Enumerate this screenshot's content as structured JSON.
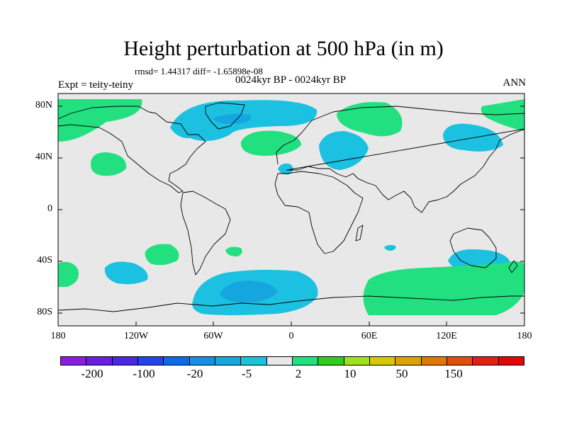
{
  "title": "Height perturbation at 500 hPa (in m)",
  "stats": "rmsd= 1.44317 diff= -1.65898e-08",
  "subtitle": "0024kyr BP - 0024kyr BP",
  "experiment": "Expt = teity-teiny",
  "season": "ANN",
  "lat_labels": [
    "80N",
    "40N",
    "0",
    "40S",
    "80S"
  ],
  "lon_labels": [
    "180",
    "120W",
    "60W",
    "0",
    "60E",
    "120E",
    "180"
  ],
  "colors": {
    "background": "#e8e8e8",
    "light_cyan": "#1cc0e0",
    "mid_blue": "#15a6e0",
    "light_green": "#22e080",
    "coast": "#000000"
  },
  "colorbar": {
    "colors": [
      "#8a1ee0",
      "#6a1ee0",
      "#4a28e0",
      "#2244e8",
      "#0c6ce8",
      "#1590e8",
      "#15a8e0",
      "#1ac2e0",
      "#e8e8e8",
      "#22e080",
      "#30cc20",
      "#a0e020",
      "#d8c80a",
      "#e0a008",
      "#e07808",
      "#e05008",
      "#e02010",
      "#e00808"
    ],
    "labels": [
      "-200",
      "-100",
      "-20",
      "-5",
      "2",
      "10",
      "50",
      "150"
    ]
  },
  "anomaly_regions": [
    {
      "name": "north-atlantic-negative",
      "sign": "negative"
    },
    {
      "name": "arctic-atlantic-positive",
      "sign": "positive"
    },
    {
      "name": "europe-negative",
      "sign": "negative"
    },
    {
      "name": "siberia-positive",
      "sign": "positive"
    },
    {
      "name": "east-asia-negative",
      "sign": "negative"
    },
    {
      "name": "alaska-positive",
      "sign": "positive"
    },
    {
      "name": "north-pacific-positive",
      "sign": "positive"
    },
    {
      "name": "australia-negative",
      "sign": "negative"
    },
    {
      "name": "southern-ocean-positive",
      "sign": "positive"
    },
    {
      "name": "south-atlantic-negative",
      "sign": "negative"
    },
    {
      "name": "south-pacific-negative",
      "sign": "negative"
    },
    {
      "name": "south-pacific-positive",
      "sign": "positive"
    }
  ]
}
